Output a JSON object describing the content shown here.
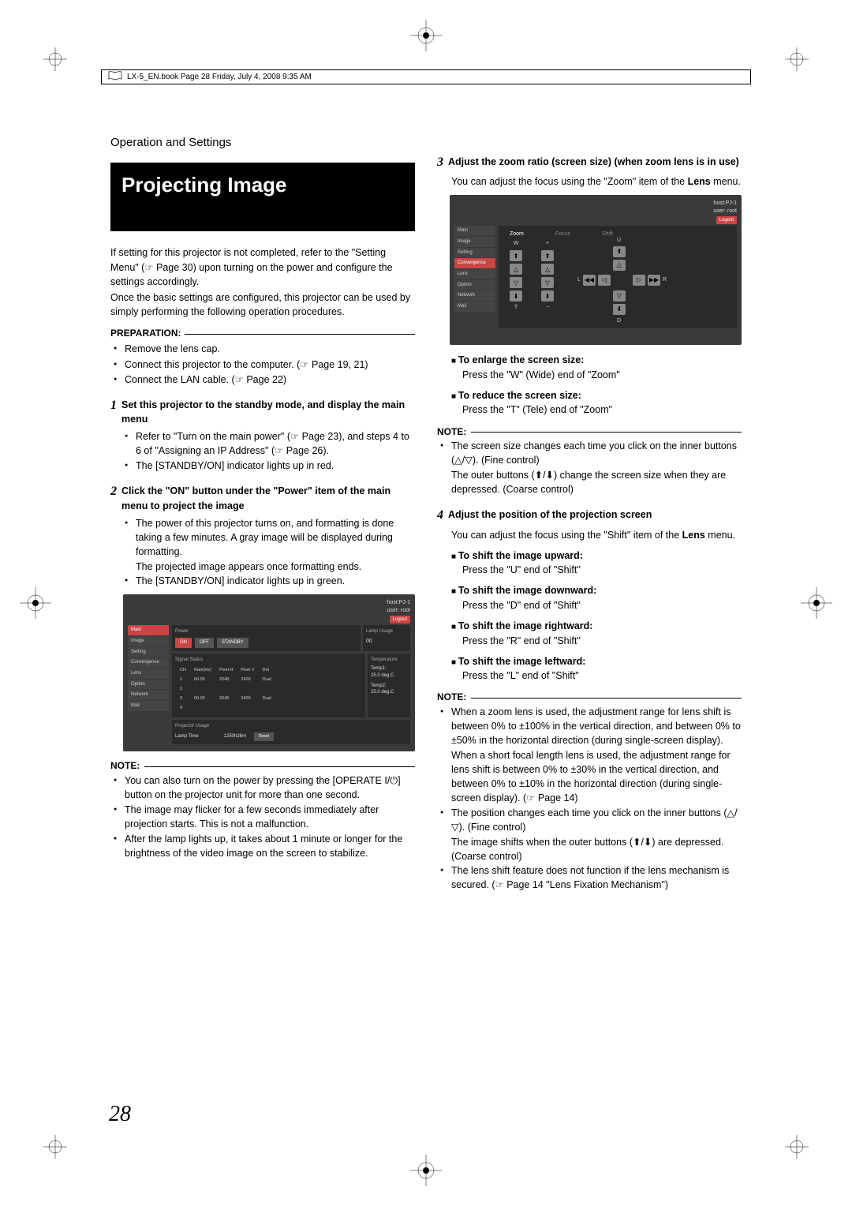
{
  "header": {
    "text": "LX-5_EN.book  Page 28  Friday, July 4, 2008  9:35 AM"
  },
  "section_title": "Operation and Settings",
  "main_title": "Projecting Image",
  "intro": {
    "p1": "If setting for this projector is not completed, refer to the \"Setting Menu\" (☞ Page 30) upon turning on the power and configure the settings accordingly.",
    "p2": "Once the basic settings are configured, this projector can be used by simply performing the following operation procedures."
  },
  "prep": {
    "title": "PREPARATION:",
    "items": [
      "Remove the lens cap.",
      "Connect this projector to the computer. (☞ Page 19, 21)",
      "Connect the LAN cable. (☞ Page 22)"
    ]
  },
  "step1": {
    "num": "1",
    "title": "Set this projector to the standby mode, and display the main menu",
    "items": [
      "Refer to \"Turn on the main power\" (☞ Page 23), and steps 4 to 6 of \"Assigning an IP Address\" (☞ Page 26).",
      "The [STANDBY/ON] indicator lights up in red."
    ]
  },
  "step2": {
    "num": "2",
    "title": "Click the \"ON\" button under the \"Power\" item of the main menu to project the image",
    "items": [
      "The power of this projector turns on, and formatting is done taking a few minutes. A gray image will be displayed during formatting."
    ],
    "cont": "The projected image appears once formatting ends.",
    "item2": "The [STANDBY/ON] indicator lights up in green."
  },
  "screenshot1": {
    "host": "host:PJ-1",
    "user": "user: root",
    "logout": "Logout",
    "sidebar": [
      "Main",
      "Image",
      "Setting",
      "Convergence",
      "Lens",
      "Option",
      "Network",
      "Mail"
    ],
    "active_idx": 0,
    "power_label": "Power",
    "btn_on": "ON",
    "btn_off": "OFF",
    "btn_standby": "STANDBY",
    "lamp_label": "Lamp Usage",
    "lamp_val": "00",
    "signal_label": "Signal Status",
    "signal_cols": [
      "CH",
      "Rate(Hz)",
      "Pixel H",
      "Pixel V",
      "Dot"
    ],
    "signal_rows": [
      [
        "1",
        "60.00",
        "2048",
        "2400",
        "Dual"
      ],
      [
        "2",
        "",
        "",
        "",
        ""
      ],
      [
        "3",
        "60.00",
        "2048",
        "2400",
        "Dual"
      ],
      [
        "4",
        "",
        "",
        "",
        ""
      ]
    ],
    "temp_label": "Temperature",
    "temp1": "Temp1:",
    "temp1_val": "25.0 deg.C",
    "temp2": "Temp2:",
    "temp2_val": "25.0 deg.C",
    "usage_label": "Projector Usage",
    "lamp_time": "Lamp Time",
    "lamp_time_val": "1250h26m",
    "reset": "Reset"
  },
  "note1": {
    "title": "NOTE:",
    "items": [
      "You can also turn on the power by pressing the [OPERATE I/⏻] button on the projector unit for more than one second.",
      "The image may flicker for a few seconds immediately after projection starts. This is not a malfunction.",
      "After the lamp lights up, it takes about 1 minute or longer for the brightness of the video image on the screen to stabilize."
    ]
  },
  "step3": {
    "num": "3",
    "title": "Adjust the zoom ratio (screen size) (when zoom lens is in use)",
    "desc": "You can adjust the focus using the \"Zoom\" item of the",
    "desc_bold": "Lens",
    "desc_end": " menu."
  },
  "screenshot2": {
    "host": "host:PJ-1",
    "user": "user: root",
    "logout": "Logout",
    "sidebar": [
      "Main",
      "Image",
      "Setting",
      "Convergence",
      "Lens",
      "Option",
      "Network",
      "Mail"
    ],
    "active_idx": 3,
    "tabs": [
      "Zoom",
      "Focus",
      "Shift"
    ],
    "labels": {
      "w": "W",
      "t": "T",
      "plus": "+",
      "minus": "−",
      "u": "U",
      "d": "D",
      "l": "L",
      "r": "R"
    }
  },
  "enlarge": {
    "title": "To enlarge the screen size:",
    "desc": "Press the \"W\" (Wide) end of \"Zoom\""
  },
  "reduce": {
    "title": "To reduce the screen size:",
    "desc": "Press the \"T\" (Tele) end of \"Zoom\""
  },
  "note2": {
    "title": "NOTE:",
    "items": [
      "The screen size changes each time you click on the inner buttons (△/▽). (Fine control)"
    ],
    "cont": "The outer buttons (⬆/⬇) change the screen size when they are depressed. (Coarse control)"
  },
  "step4": {
    "num": "4",
    "title": "Adjust the position of the projection screen",
    "desc": "You can adjust the focus using the \"Shift\" item of the",
    "desc_bold": "Lens",
    "desc_end": " menu."
  },
  "shifts": [
    {
      "title": "To shift the image upward:",
      "desc": "Press the \"U\" end of \"Shift\""
    },
    {
      "title": "To shift the image downward:",
      "desc": "Press the \"D\" end of \"Shift\""
    },
    {
      "title": "To shift the image rightward:",
      "desc": "Press the \"R\" end of \"Shift\""
    },
    {
      "title": "To shift the image leftward:",
      "desc": "Press the \"L\" end of \"Shift\""
    }
  ],
  "note3": {
    "title": "NOTE:",
    "items": [
      "When a zoom lens is used, the adjustment range for lens shift is between 0% to ±100% in the vertical direction, and between 0% to ±50% in the horizontal direction (during single-screen display)."
    ],
    "cont1": "When a short focal length lens is used, the adjustment range for lens shift is between 0% to ±30% in the vertical direction, and between 0% to ±10% in the horizontal direction (during single-screen display). (☞ Page 14)",
    "item2": "The position changes each time you click on the inner buttons (△/▽). (Fine control)",
    "cont2": "The image shifts when the outer buttons (⬆/⬇) are depressed. (Coarse control)",
    "item3": "The lens shift feature does not function if the lens mechanism is secured. (☞ Page 14 \"Lens Fixation Mechanism\")"
  },
  "page_number": "28"
}
